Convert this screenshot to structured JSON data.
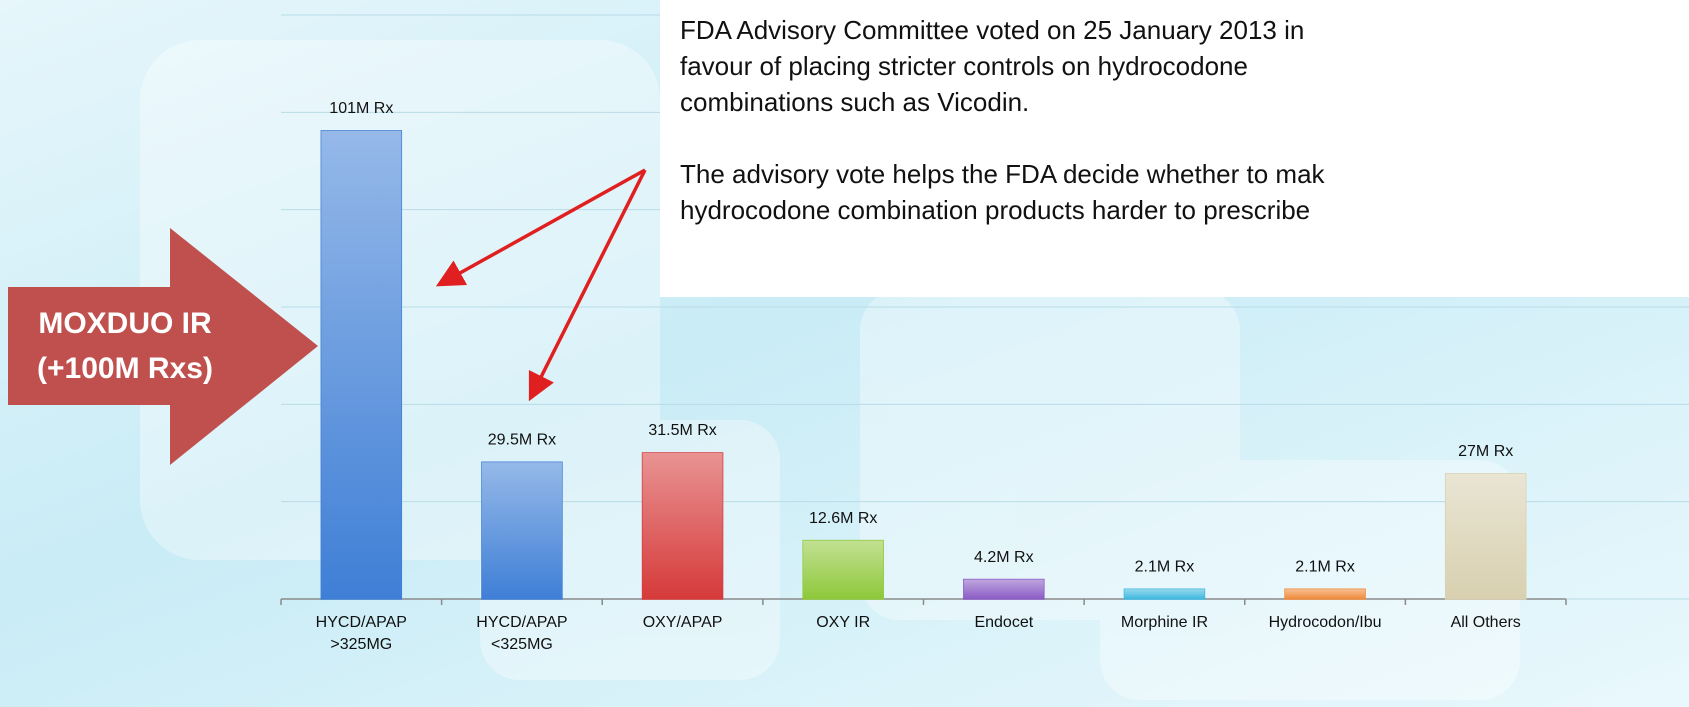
{
  "chart_data": {
    "type": "bar",
    "categories": [
      "HYCD/APAP >325MG",
      "HYCD/APAP <325MG",
      "OXY/APAP",
      "OXY IR",
      "Endocet",
      "Morphine IR",
      "Hydrocodon/Ibu",
      "All Others"
    ],
    "values": [
      101,
      29.5,
      31.5,
      12.6,
      4.2,
      2.1,
      2.1,
      27
    ],
    "value_labels": [
      "101M Rx",
      "29.5M Rx",
      "31.5M Rx",
      "12.6M Rx",
      "4.2M Rx",
      "2.1M Rx",
      "2.1M Rx",
      "27M Rx"
    ],
    "colors": [
      "#3f7fd6",
      "#3f7fd6",
      "#d63a3a",
      "#8fc83a",
      "#8a5cc4",
      "#3fb8e0",
      "#f08a3a",
      "#d8d0b0"
    ],
    "ylim": [
      0,
      126
    ],
    "yticks": [
      0,
      21,
      42,
      63,
      84,
      105,
      126
    ],
    "grid": true,
    "callout": {
      "lines": [
        "MOXDUO IR",
        "(+100M Rxs)"
      ]
    },
    "annotation": {
      "paragraphs": [
        [
          "FDA Advisory Committee voted on 25 January 2013 in",
          "favour of placing stricter controls on hydrocodone",
          "combinations such as Vicodin."
        ],
        [
          "The advisory vote helps the FDA decide whether to mak",
          "hydrocodone combination products harder to prescribe"
        ]
      ]
    }
  }
}
